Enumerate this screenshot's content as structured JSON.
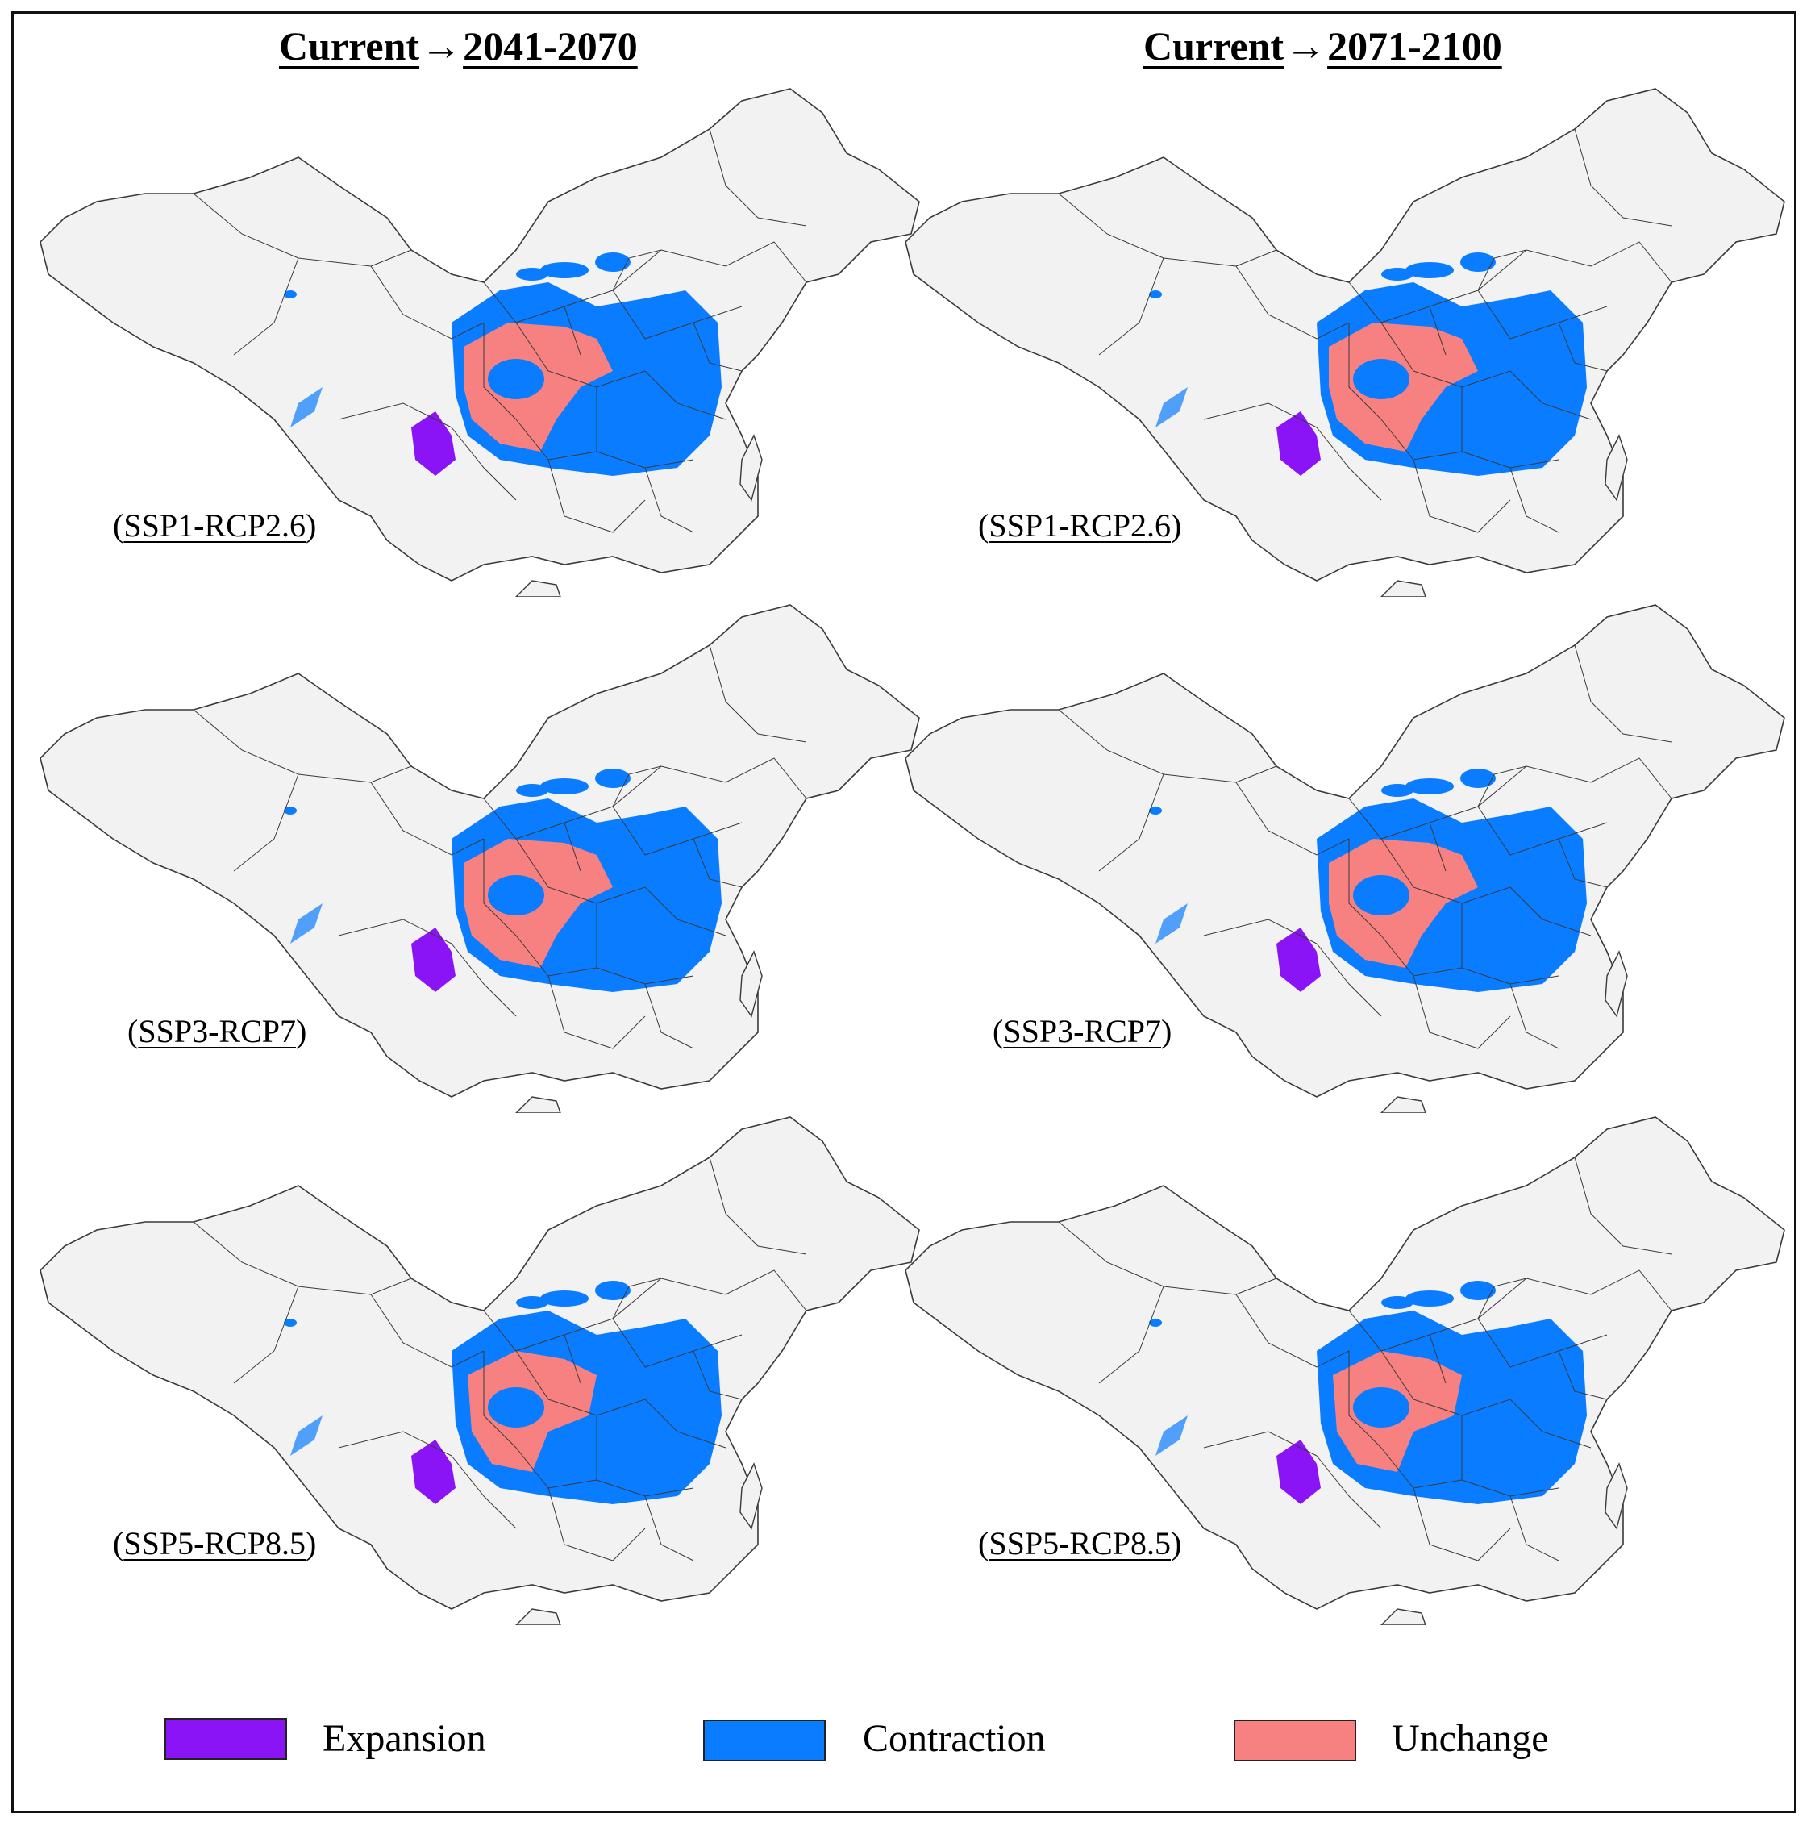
{
  "columns": [
    {
      "from": "Current",
      "arrow": "→",
      "to": "2041-2070"
    },
    {
      "from": "Current",
      "arrow": "→",
      "to": "2071-2100"
    }
  ],
  "panels": [
    {
      "scenario": "SSP1-RCP2.6",
      "period": "2041-2070"
    },
    {
      "scenario": "SSP1-RCP2.6",
      "period": "2071-2100"
    },
    {
      "scenario": "SSP3-RCP7",
      "period": "2041-2070"
    },
    {
      "scenario": "SSP3-RCP7",
      "period": "2071-2100"
    },
    {
      "scenario": "SSP5-RCP8.5",
      "period": "2041-2070"
    },
    {
      "scenario": "SSP5-RCP8.5",
      "period": "2071-2100"
    }
  ],
  "paren_open": "(",
  "paren_close": ")",
  "legend": [
    {
      "label": "Expansion",
      "color": "#8a14f5"
    },
    {
      "label": "Contraction",
      "color": "#0a7cff"
    },
    {
      "label": "Unchange",
      "color": "#f78080"
    }
  ],
  "colors": {
    "land": "#f2f2f2",
    "border": "#3a3a3a",
    "expansion": "#8a14f5",
    "contraction": "#0a7cff",
    "unchange": "#f78080"
  }
}
